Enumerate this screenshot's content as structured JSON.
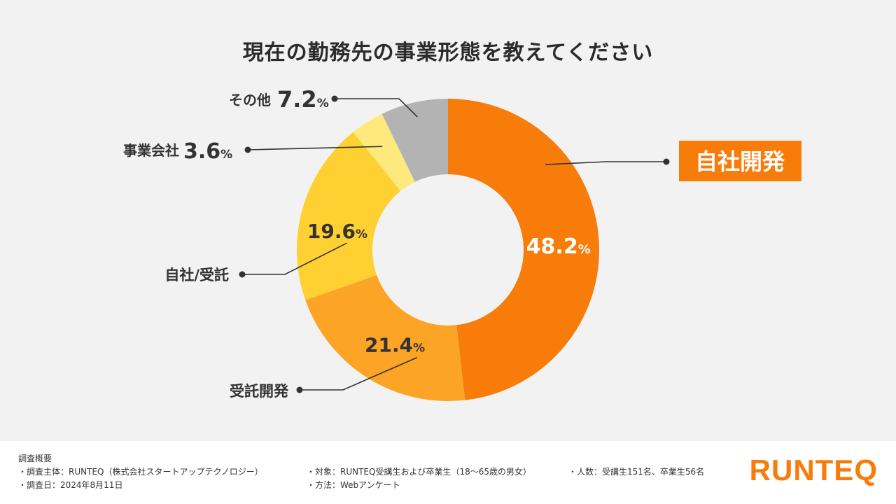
{
  "title": "現在の勤務先の事業形態を教えてください",
  "chart_data": {
    "type": "pie",
    "donut": true,
    "title": "現在の勤務先の事業形態を教えてください",
    "unit": "%",
    "slices": [
      {
        "label": "自社開発",
        "value": 48.2,
        "value_text": "48.2",
        "color": "#f77c0a",
        "highlight": true
      },
      {
        "label": "受託開発",
        "value": 21.4,
        "value_text": "21.4",
        "color": "#fba426"
      },
      {
        "label": "自社/受託",
        "value": 19.6,
        "value_text": "19.6",
        "color": "#fed031"
      },
      {
        "label": "事業会社",
        "value": 3.6,
        "value_text": "3.6",
        "color": "#fee97c"
      },
      {
        "label": "その他",
        "value": 7.2,
        "value_text": "7.2",
        "color": "#b3b3b3"
      }
    ]
  },
  "footer": {
    "survey_title": "調査概要",
    "survey_host": "・調査主体：RUNTEQ（株式会社スタートアップテクノロジー）",
    "survey_target": "・対象：RUNTEQ受講生および卒業生（18〜65歳の男女）",
    "survey_count": "・人数：受講生151名、卒業生56名",
    "survey_date": "・調査日：2024年8月11日",
    "survey_method": "・方法：Webアンケート",
    "logo": "RUNTEQ"
  }
}
